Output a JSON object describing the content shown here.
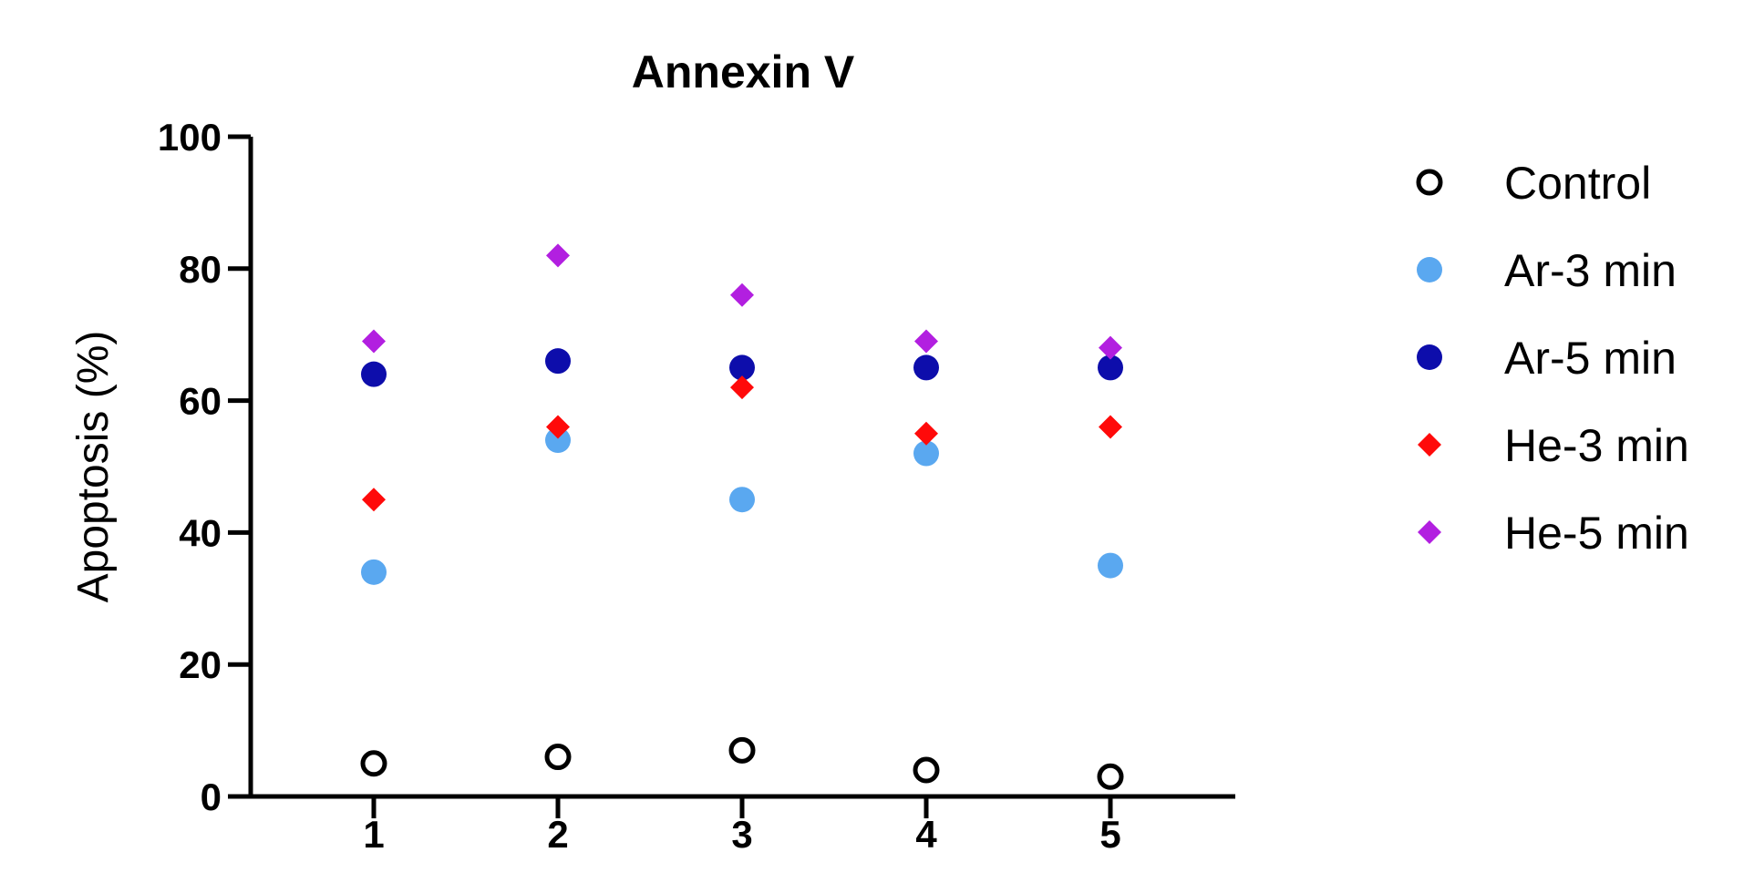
{
  "chart_data": {
    "type": "scatter",
    "title": "Annexin V",
    "xlabel": "",
    "ylabel": "Apoptosis (%)",
    "categories": [
      "1",
      "2",
      "3",
      "4",
      "5"
    ],
    "ylim": [
      0,
      100
    ],
    "yticks": [
      "0",
      "20",
      "40",
      "60",
      "80",
      "100"
    ],
    "legend_position": "right",
    "series": [
      {
        "name": "Control",
        "marker": "open-circle",
        "color": "#000000",
        "values": [
          5,
          6,
          7,
          4,
          3
        ]
      },
      {
        "name": "Ar-3 min",
        "marker": "circle",
        "color": "#5aa8f0",
        "values": [
          34,
          54,
          45,
          52,
          35
        ]
      },
      {
        "name": "Ar-5 min",
        "marker": "circle",
        "color": "#0d0dab",
        "values": [
          64,
          66,
          65,
          65,
          65
        ]
      },
      {
        "name": "He-3 min",
        "marker": "diamond",
        "color": "#ff0a0a",
        "values": [
          45,
          56,
          62,
          55,
          56
        ]
      },
      {
        "name": "He-5 min",
        "marker": "diamond",
        "color": "#b21fe0",
        "values": [
          69,
          82,
          76,
          69,
          68
        ]
      }
    ]
  }
}
